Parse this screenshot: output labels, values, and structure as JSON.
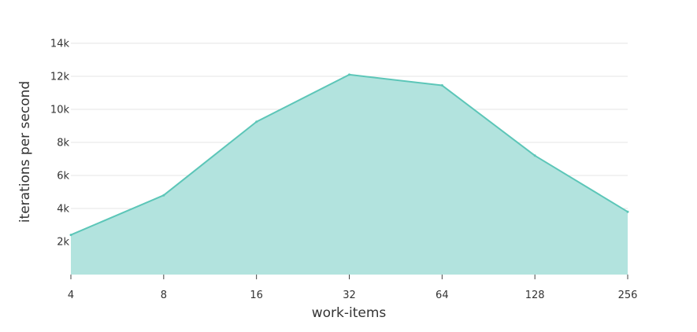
{
  "chart_data": {
    "type": "area",
    "title": "",
    "xlabel": "work-items",
    "ylabel": "iterations per second",
    "x_scale": "log2",
    "categories": [
      "4",
      "8",
      "16",
      "32",
      "64",
      "128",
      "256"
    ],
    "x": [
      4,
      8,
      16,
      32,
      64,
      128,
      256
    ],
    "series": [
      {
        "values": [
          2400,
          4800,
          9250,
          12100,
          11450,
          7200,
          3800
        ]
      }
    ],
    "ylim": [
      0,
      14000
    ],
    "yticks": [
      2000,
      4000,
      6000,
      8000,
      10000,
      12000,
      14000
    ],
    "ytick_labels": [
      "2k",
      "4k",
      "6k",
      "8k",
      "10k",
      "12k",
      "14k"
    ],
    "grid": true,
    "legend": "none",
    "colors": {
      "fill": "#b2e3de",
      "line": "#5cc6b8"
    }
  }
}
